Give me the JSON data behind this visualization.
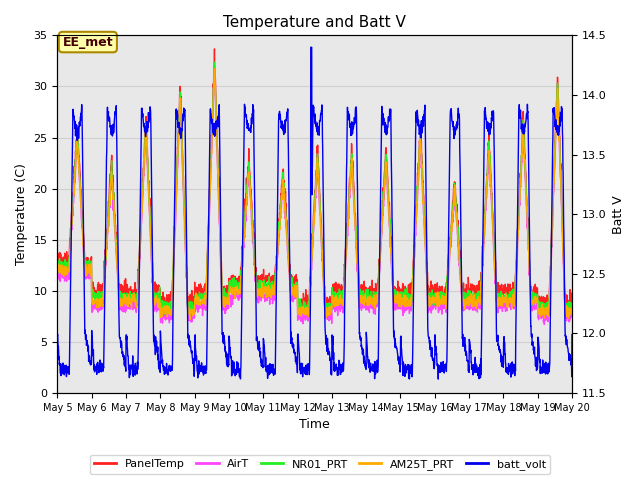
{
  "title": "Temperature and Batt V",
  "xlabel": "Time",
  "ylabel_left": "Temperature (C)",
  "ylabel_right": "Batt V",
  "ylim_left": [
    0,
    35
  ],
  "ylim_right": [
    11.5,
    14.5
  ],
  "xlim": [
    0,
    15
  ],
  "annotation_text": "EE_met",
  "grid_color": "#d0d0d0",
  "bg_color": "#e8e8e8",
  "legend_entries": [
    "PanelTemp",
    "AirT",
    "NR01_PRT",
    "AM25T_PRT",
    "batt_volt"
  ],
  "legend_colors": [
    "#ff2020",
    "#ff44ff",
    "#22ee22",
    "#ffaa00",
    "#0000ee"
  ],
  "line_width": 1.0,
  "xtick_labels": [
    "May 5",
    "May 6",
    "May 7",
    "May 8",
    "May 9",
    "May 10",
    "May 11",
    "May 12",
    "May 13",
    "May 14",
    "May 15",
    "May 16",
    "May 17",
    "May 18",
    "May 19",
    "May 20"
  ],
  "xtick_positions": [
    0,
    1,
    2,
    3,
    4,
    5,
    6,
    7,
    8,
    9,
    10,
    11,
    12,
    13,
    14,
    15
  ],
  "yticks_left": [
    0,
    5,
    10,
    15,
    20,
    25,
    30,
    35
  ],
  "yticks_right": [
    11.5,
    12.0,
    12.5,
    13.0,
    13.5,
    14.0,
    14.5
  ]
}
